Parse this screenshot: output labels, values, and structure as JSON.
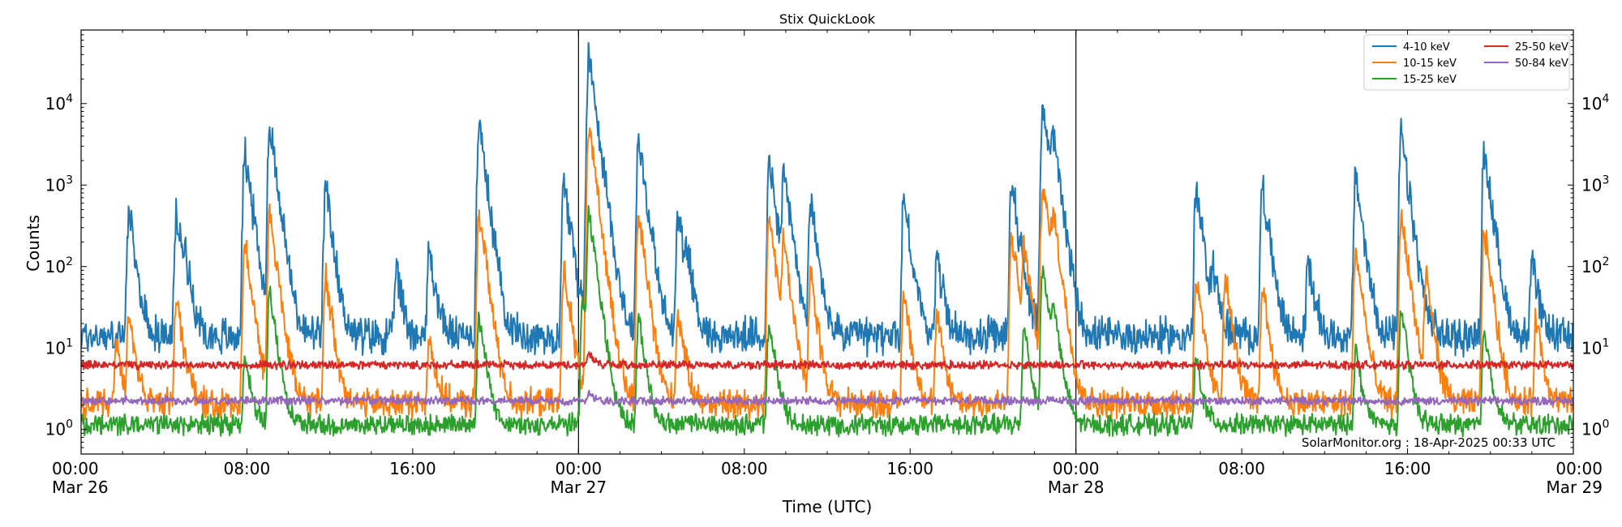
{
  "chart_data": {
    "type": "line",
    "title": "Stix QuickLook",
    "xlabel": "Time (UTC)",
    "ylabel": "Counts",
    "yscale": "log",
    "ylim": [
      0.5,
      80000
    ],
    "xlim_hours": [
      0,
      72
    ],
    "x_ticks": [
      {
        "h": 0,
        "time": "00:00",
        "date": "Mar 26"
      },
      {
        "h": 8,
        "time": "08:00",
        "date": ""
      },
      {
        "h": 16,
        "time": "16:00",
        "date": ""
      },
      {
        "h": 24,
        "time": "00:00",
        "date": "Mar 27"
      },
      {
        "h": 32,
        "time": "08:00",
        "date": ""
      },
      {
        "h": 40,
        "time": "16:00",
        "date": ""
      },
      {
        "h": 48,
        "time": "00:00",
        "date": "Mar 28"
      },
      {
        "h": 56,
        "time": "08:00",
        "date": ""
      },
      {
        "h": 64,
        "time": "16:00",
        "date": ""
      },
      {
        "h": 72,
        "time": "00:00",
        "date": "Mar 29"
      }
    ],
    "y_ticks": [
      {
        "v": 1,
        "exp": "0"
      },
      {
        "v": 10,
        "exp": "1"
      },
      {
        "v": 100,
        "exp": "2"
      },
      {
        "v": 1000,
        "exp": "3"
      },
      {
        "v": 10000,
        "exp": "4"
      }
    ],
    "tick_base": "10",
    "day_boundaries_h": [
      24,
      48
    ],
    "annotation": "SolarMonitor.org : 18-Apr-2025 00:33 UTC",
    "series": [
      {
        "name": "4-10 keV",
        "color": "#1f77b4",
        "baseline": 14,
        "noise": 0.18,
        "peaks": [
          [
            2.3,
            450
          ],
          [
            4.6,
            450
          ],
          [
            5,
            120
          ],
          [
            7.9,
            2800
          ],
          [
            9.1,
            5800
          ],
          [
            11.8,
            900
          ],
          [
            15.2,
            100
          ],
          [
            16.8,
            170
          ],
          [
            19.2,
            5800
          ],
          [
            23.3,
            1200
          ],
          [
            24.5,
            42000
          ],
          [
            26.9,
            4000
          ],
          [
            28.8,
            450
          ],
          [
            29.2,
            140
          ],
          [
            33.2,
            2000
          ],
          [
            33.9,
            1500
          ],
          [
            35.2,
            600
          ],
          [
            39.7,
            700
          ],
          [
            41.3,
            140
          ],
          [
            44.9,
            1200
          ],
          [
            46.4,
            10000
          ],
          [
            46.9,
            3500
          ],
          [
            53.8,
            900
          ],
          [
            54.6,
            90
          ],
          [
            57,
            1000
          ],
          [
            59.2,
            130
          ],
          [
            61.5,
            1300
          ],
          [
            63.7,
            4300
          ],
          [
            67.7,
            2800
          ],
          [
            70,
            120
          ]
        ]
      },
      {
        "name": "10-15 keV",
        "color": "#ff7f0e",
        "baseline": 2.1,
        "noise": 0.14,
        "peaks": [
          [
            1.7,
            12
          ],
          [
            2.3,
            25
          ],
          [
            4.6,
            45
          ],
          [
            7.9,
            210
          ],
          [
            9.1,
            500
          ],
          [
            11.8,
            80
          ],
          [
            16.8,
            15
          ],
          [
            19.2,
            500
          ],
          [
            23.3,
            100
          ],
          [
            24.5,
            5000
          ],
          [
            26.9,
            450
          ],
          [
            28.8,
            30
          ],
          [
            33.2,
            450
          ],
          [
            33.9,
            200
          ],
          [
            35.2,
            80
          ],
          [
            39.7,
            50
          ],
          [
            41.3,
            25
          ],
          [
            44.9,
            250
          ],
          [
            45.5,
            180
          ],
          [
            46.4,
            1100
          ],
          [
            46.9,
            400
          ],
          [
            53.8,
            70
          ],
          [
            55.2,
            80
          ],
          [
            57,
            60
          ],
          [
            61.5,
            170
          ],
          [
            63.7,
            450
          ],
          [
            64.9,
            80
          ],
          [
            67.7,
            300
          ],
          [
            70.2,
            25
          ]
        ]
      },
      {
        "name": "15-25 keV",
        "color": "#2ca02c",
        "baseline": 1.15,
        "noise": 0.1,
        "peaks": [
          [
            7.9,
            8
          ],
          [
            9.1,
            50
          ],
          [
            19.2,
            25
          ],
          [
            24.5,
            500
          ],
          [
            24.2,
            40
          ],
          [
            26.9,
            25
          ],
          [
            33.2,
            22
          ],
          [
            45.5,
            20
          ],
          [
            46.4,
            100
          ],
          [
            46.9,
            30
          ],
          [
            53.8,
            8
          ],
          [
            61.5,
            10
          ],
          [
            63.7,
            30
          ],
          [
            67.7,
            18
          ]
        ]
      },
      {
        "name": "25-50 keV",
        "color": "#d62728",
        "baseline": 6.2,
        "noise": 0.04,
        "peaks": [
          [
            24.5,
            9
          ]
        ]
      },
      {
        "name": "50-84 keV",
        "color": "#9467bd",
        "baseline": 2.25,
        "noise": 0.04,
        "peaks": [
          [
            24.5,
            3
          ]
        ]
      }
    ]
  }
}
